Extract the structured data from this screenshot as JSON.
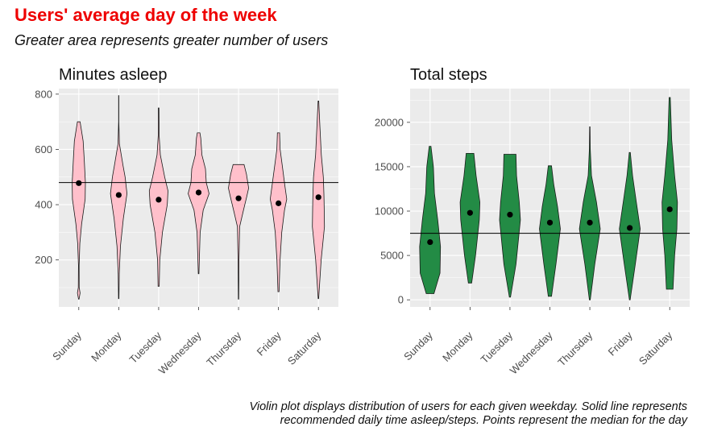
{
  "title": "Users' average day of the week",
  "subtitle": "Greater area represents greater number of users",
  "caption_line1": "Violin plot displays distribution of users for each given weekday. Solid line represents",
  "caption_line2": "recommended daily time asleep/steps. Points represent the median for the day",
  "colors": {
    "title": "#ee0000",
    "panel_bg": "#ebebeb",
    "grid": "#ffffff",
    "sleep_fill": "#ffc0cb",
    "steps_fill": "#238b45"
  },
  "chart_data": [
    {
      "type": "violin",
      "title": "Minutes asleep",
      "categories": [
        "Sunday",
        "Monday",
        "Tuesday",
        "Wednesday",
        "Thursday",
        "Friday",
        "Saturday"
      ],
      "yticks": [
        200,
        400,
        600,
        800
      ],
      "ylim": [
        30,
        820
      ],
      "reference_line": 480,
      "medians": [
        478,
        435,
        418,
        444,
        423,
        405,
        427
      ],
      "ranges": [
        [
          58,
          700
        ],
        [
          60,
          795
        ],
        [
          105,
          750
        ],
        [
          150,
          660
        ],
        [
          58,
          545
        ],
        [
          85,
          660
        ],
        [
          60,
          775
        ]
      ],
      "grid": true
    },
    {
      "type": "violin",
      "title": "Total steps",
      "categories": [
        "Sunday",
        "Monday",
        "Tuesday",
        "Wednesday",
        "Thursday",
        "Friday",
        "Saturday"
      ],
      "yticks": [
        0,
        5000,
        10000,
        15000,
        20000
      ],
      "ylim": [
        -800,
        23800
      ],
      "reference_line": 7500,
      "medians": [
        6500,
        9800,
        9600,
        8700,
        8700,
        8100,
        10200
      ],
      "ranges": [
        [
          700,
          17300
        ],
        [
          1900,
          16500
        ],
        [
          300,
          16400
        ],
        [
          400,
          15100
        ],
        [
          0,
          19500
        ],
        [
          0,
          16600
        ],
        [
          1200,
          22800
        ]
      ],
      "grid": true
    }
  ]
}
